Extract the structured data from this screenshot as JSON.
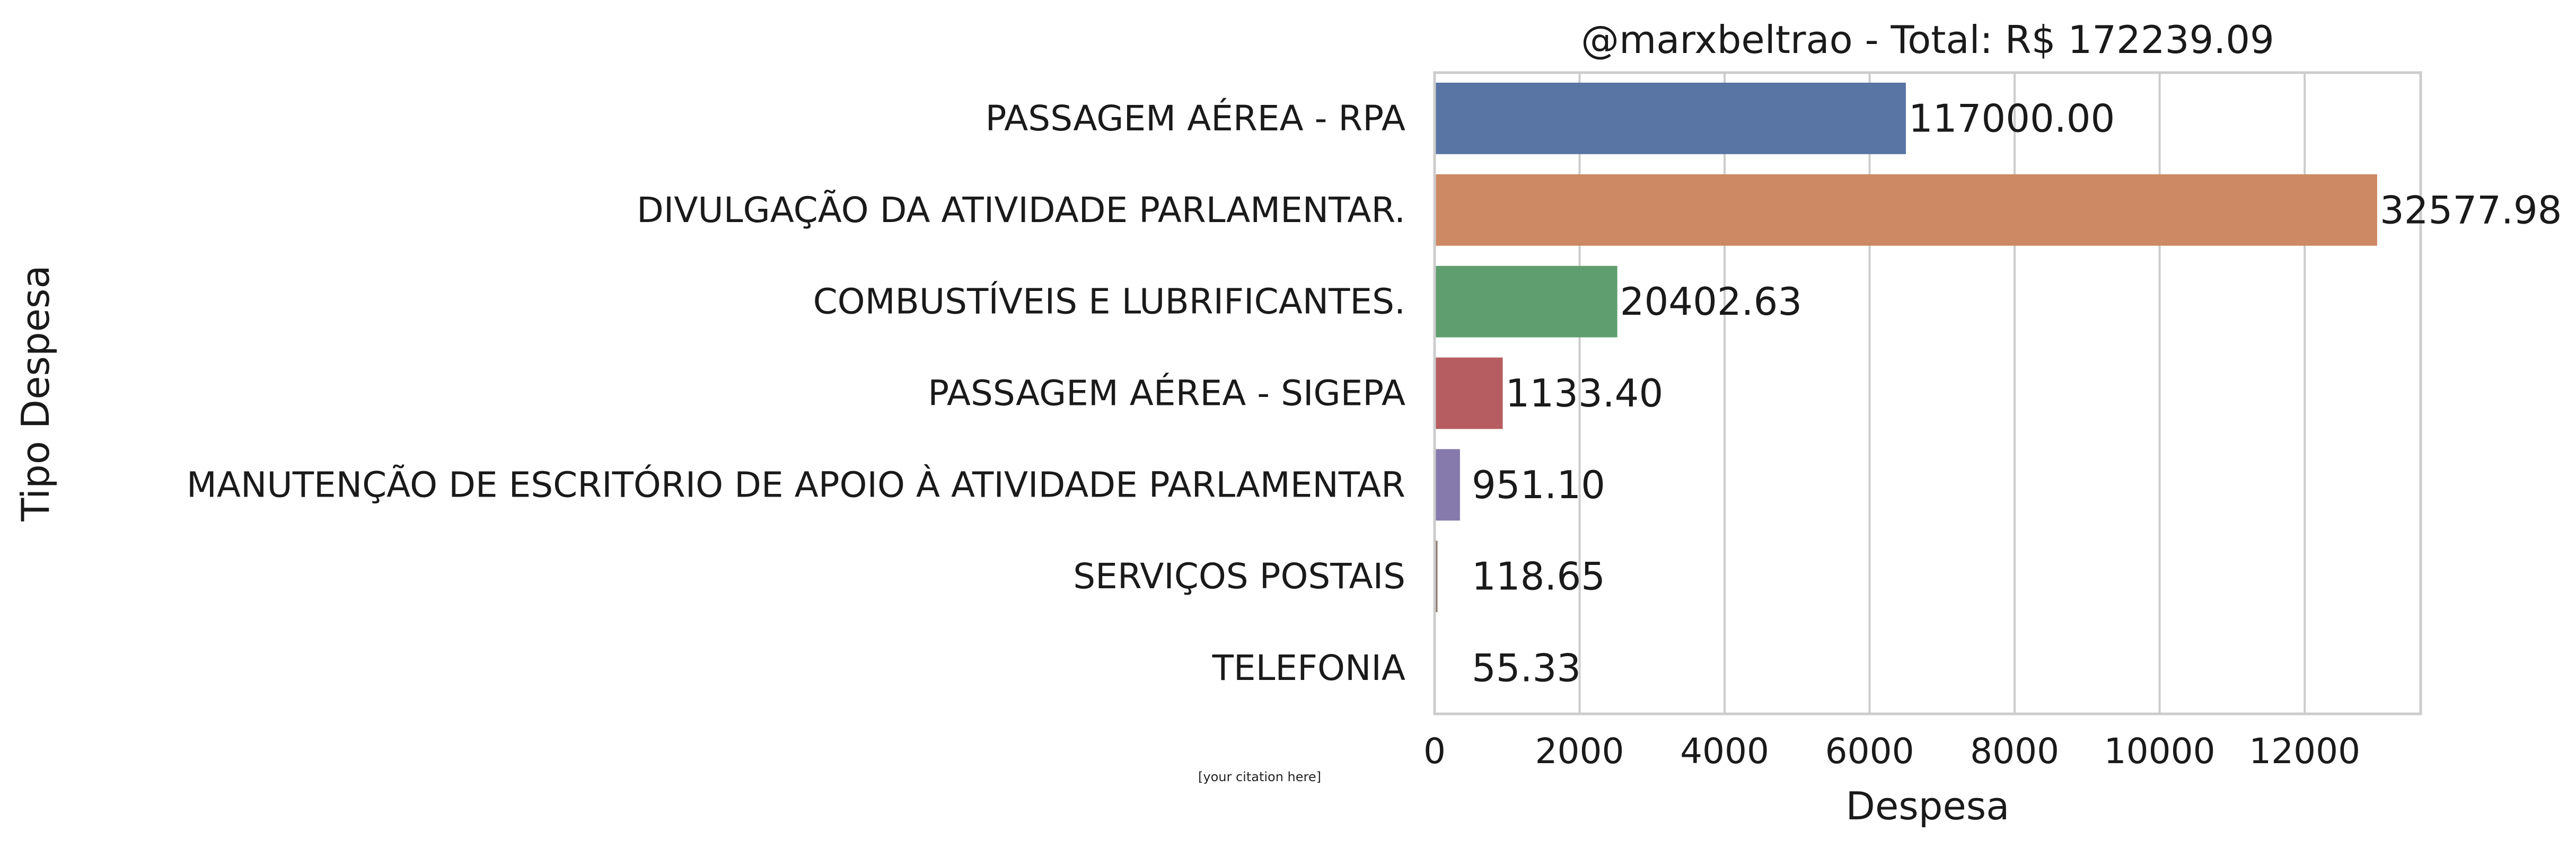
{
  "chart_data": {
    "type": "bar",
    "orientation": "horizontal",
    "title": "@marxbeltrao - Total: R$ 172239.09",
    "xlabel": "Despesa",
    "ylabel": "Tipo Despesa",
    "xlim": [
      0,
      13600
    ],
    "xticks": [
      0,
      2000,
      4000,
      6000,
      8000,
      10000,
      12000
    ],
    "grid": "vertical",
    "categories": [
      "PASSAGEM AÉREA - RPA",
      "DIVULGAÇÃO DA ATIVIDADE PARLAMENTAR.",
      "COMBUSTÍVEIS E LUBRIFICANTES.",
      "PASSAGEM AÉREA - SIGEPA",
      "MANUTENÇÃO DE ESCRITÓRIO DE APOIO À ATIVIDADE PARLAMENTAR",
      "SERVIÇOS POSTAIS",
      "TELEFONIA"
    ],
    "values": [
      6500,
      13000,
      2520,
      940,
      350,
      40,
      10
    ],
    "bar_labels": [
      "117000.00",
      "32577.98",
      "20402.63",
      "1133.40",
      "951.10",
      "118.65",
      "55.33"
    ],
    "colors": [
      "#5875a4",
      "#cc8963",
      "#5f9e6e",
      "#b55d60",
      "#857aab",
      "#8d7866",
      "#d095bf"
    ]
  },
  "citation": "[your citation here]"
}
